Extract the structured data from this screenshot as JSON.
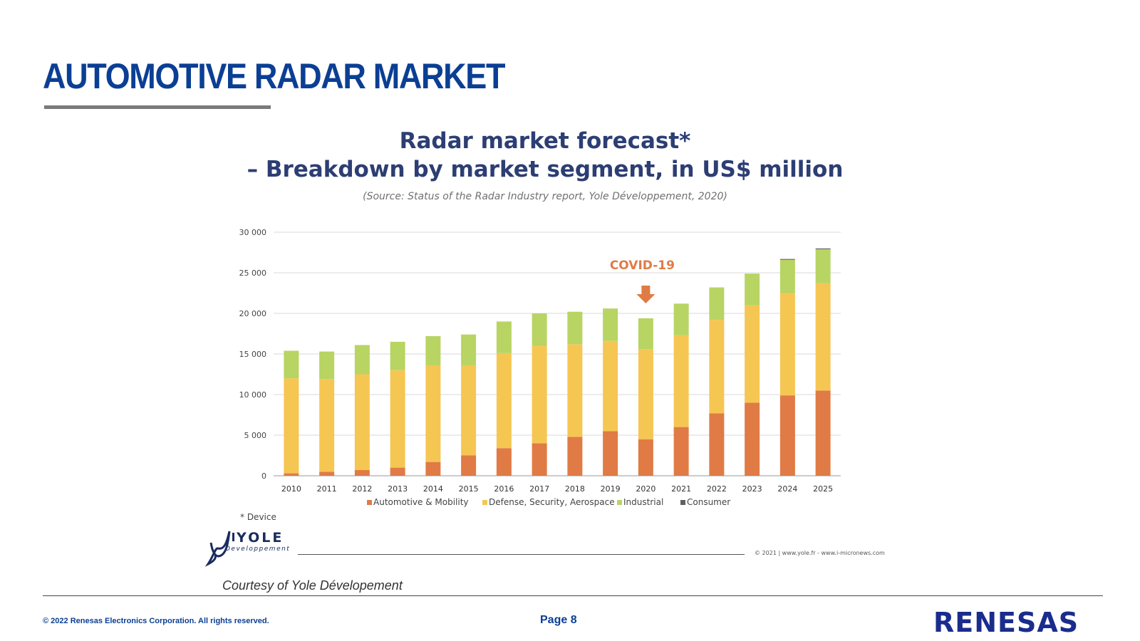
{
  "slide": {
    "title": "AUTOMOTIVE RADAR MARKET",
    "courtesy": "Courtesy of Yole Dévelopement",
    "footer_copyright": "© 2022 Renesas Electronics Corporation. All rights reserved.",
    "footer_page": "Page 8",
    "company_logo": "RENESAS"
  },
  "yole": {
    "logo_text": "YOLE",
    "logo_subtext": "Developpement",
    "copyright": "© 2021 | www.yole.fr - www.i-micronews.com",
    "footnote": "* Device"
  },
  "colors": {
    "brand_blue": "#0b3f94",
    "automotive": "#e07b45",
    "defense": "#f6c653",
    "industrial": "#b8d463",
    "consumer": "#606060",
    "annotation": "#e07b45"
  },
  "chart_data": {
    "type": "bar",
    "stacked": true,
    "title": "Radar market forecast*",
    "subtitle": "– Breakdown by market segment, in US$ million",
    "source": "(Source: Status of the Radar Industry report, Yole Développement, 2020)",
    "categories": [
      "2010",
      "2011",
      "2012",
      "2013",
      "2014",
      "2015",
      "2016",
      "2017",
      "2018",
      "2019",
      "2020",
      "2021",
      "2022",
      "2023",
      "2024",
      "2025"
    ],
    "series": [
      {
        "name": "Automotive & Mobility",
        "color": "#e07b45",
        "values": [
          300,
          500,
          700,
          1000,
          1700,
          2500,
          3400,
          4000,
          4800,
          5500,
          4500,
          6000,
          7700,
          9000,
          9900,
          10500
        ]
      },
      {
        "name": "Defense, Security, Aerospace",
        "color": "#f6c653",
        "values": [
          11700,
          11400,
          11800,
          12000,
          11900,
          11100,
          11700,
          12000,
          11400,
          11100,
          11100,
          11300,
          11500,
          12000,
          12600,
          13200
        ]
      },
      {
        "name": "Industrial",
        "color": "#b8d463",
        "values": [
          3400,
          3400,
          3600,
          3500,
          3600,
          3800,
          3900,
          4000,
          4000,
          4000,
          3800,
          3900,
          4000,
          3900,
          4100,
          4200
        ]
      },
      {
        "name": "Consumer",
        "color": "#606060",
        "values": [
          0,
          0,
          0,
          0,
          0,
          0,
          0,
          0,
          0,
          0,
          0,
          0,
          0,
          0,
          100,
          100
        ]
      }
    ],
    "ylim": [
      0,
      30000
    ],
    "yticks": [
      "0",
      "5 000",
      "10 000",
      "15 000",
      "20 000",
      "25 000",
      "30 000"
    ],
    "ytick_values": [
      0,
      5000,
      10000,
      15000,
      20000,
      25000,
      30000
    ],
    "grid": true,
    "legend": "bottom",
    "annotation": {
      "text": "COVID-19",
      "category": "2020"
    }
  }
}
